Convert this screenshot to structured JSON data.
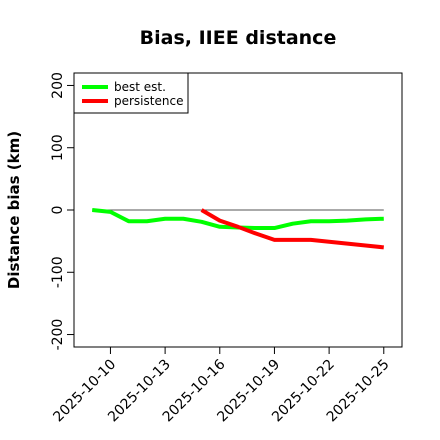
{
  "chart_data": {
    "type": "line",
    "title": "Bias, IIEE distance",
    "ylabel": "Distance bias (km)",
    "xlabel": "",
    "ylim": [
      -220,
      220
    ],
    "xlim": [
      "2025-10-08",
      "2025-10-26"
    ],
    "y_ticks": [
      -200,
      -100,
      0,
      100,
      200
    ],
    "x_ticks": [
      "2025-10-10",
      "2025-10-13",
      "2025-10-16",
      "2025-10-19",
      "2025-10-22",
      "2025-10-25"
    ],
    "reference_line": 0,
    "legend_position": "top-left",
    "series": [
      {
        "name": "best est.",
        "color": "#00ff00",
        "x": [
          "2025-10-09",
          "2025-10-10",
          "2025-10-11",
          "2025-10-12",
          "2025-10-13",
          "2025-10-14",
          "2025-10-15",
          "2025-10-16",
          "2025-10-17",
          "2025-10-18",
          "2025-10-19",
          "2025-10-20",
          "2025-10-21",
          "2025-10-22",
          "2025-10-23",
          "2025-10-24",
          "2025-10-25"
        ],
        "values": [
          0,
          -3,
          -18,
          -18,
          -14,
          -14,
          -19,
          -27,
          -28,
          -29,
          -29,
          -22,
          -18,
          -18,
          -17,
          -15,
          -14
        ]
      },
      {
        "name": "persistence",
        "color": "#ff0000",
        "x": [
          "2025-10-15",
          "2025-10-16",
          "2025-10-17",
          "2025-10-18",
          "2025-10-19",
          "2025-10-20",
          "2025-10-21",
          "2025-10-22",
          "2025-10-23",
          "2025-10-24",
          "2025-10-25"
        ],
        "values": [
          0,
          -17,
          -27,
          -38,
          -48,
          -48,
          -48,
          -51,
          -54,
          -57,
          -60
        ]
      }
    ]
  }
}
